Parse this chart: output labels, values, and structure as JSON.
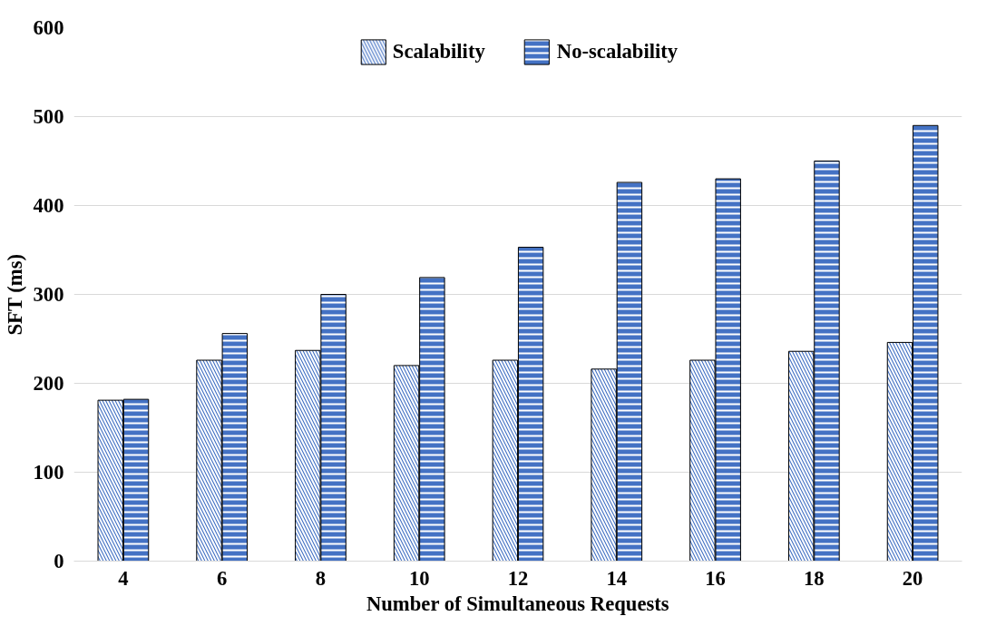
{
  "chart_data": {
    "type": "bar",
    "xlabel": "Number of Simultaneous Requests",
    "ylabel": "SFT (ms)",
    "categories": [
      "4",
      "6",
      "8",
      "10",
      "12",
      "14",
      "16",
      "18",
      "20"
    ],
    "series": [
      {
        "name": "Scalability",
        "color": "#4472c4",
        "values": [
          181,
          226,
          237,
          220,
          226,
          216,
          226,
          236,
          246
        ]
      },
      {
        "name": "No-scalability",
        "color": "#4472c4",
        "values": [
          182,
          256,
          300,
          319,
          353,
          426,
          430,
          450,
          490
        ]
      }
    ],
    "ylim": [
      0,
      600
    ],
    "yticks": [
      0,
      100,
      200,
      300,
      400,
      500,
      600
    ],
    "grid": "y",
    "legend": "top"
  }
}
